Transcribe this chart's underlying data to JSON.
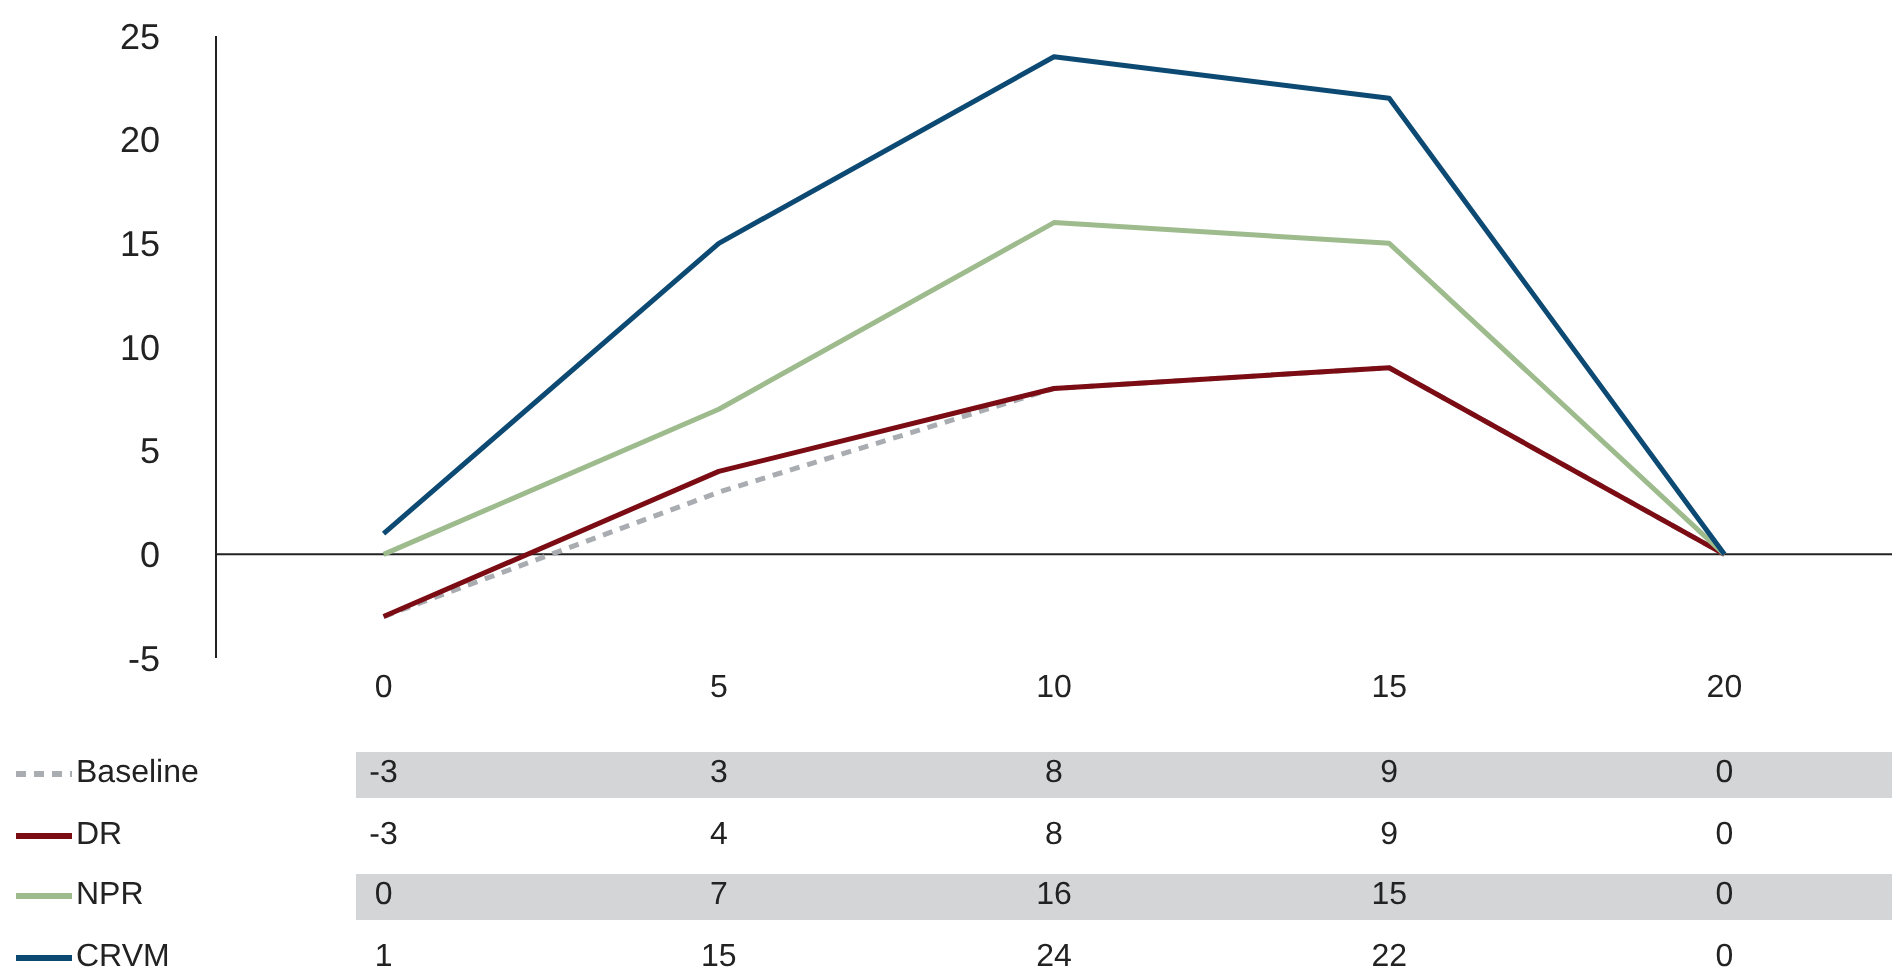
{
  "chart_data": {
    "type": "line",
    "categories": [
      "0",
      "5",
      "10",
      "15",
      "20"
    ],
    "series": [
      {
        "name": "Baseline",
        "color": "#a9acb0",
        "line_style": "dashed",
        "values": [
          -3,
          3,
          8,
          9,
          0
        ]
      },
      {
        "name": "DR",
        "color": "#7b0c14",
        "line_style": "solid",
        "values": [
          -3,
          4,
          8,
          9,
          0
        ]
      },
      {
        "name": "NPR",
        "color": "#9dbb8c",
        "line_style": "solid",
        "values": [
          0,
          7,
          16,
          15,
          0
        ]
      },
      {
        "name": "CRVM",
        "color": "#0d4a73",
        "line_style": "solid",
        "values": [
          1,
          15,
          24,
          22,
          0
        ]
      }
    ],
    "ref_lines": [
      {
        "axis": "y",
        "value": 0,
        "color": "#222222"
      }
    ],
    "ylim": [
      -5,
      25
    ],
    "yticks": [
      -5,
      0,
      5,
      10,
      15,
      20,
      25
    ],
    "legend": "bottom",
    "marker": "none",
    "data_labels": true
  }
}
